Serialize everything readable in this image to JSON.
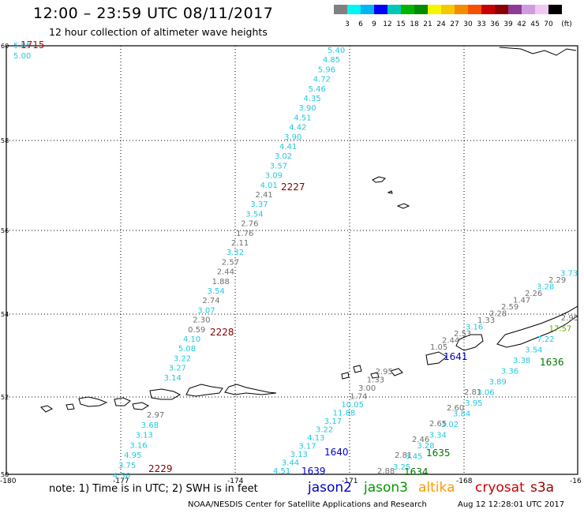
{
  "header": {
    "title": "12:00 – 23:59 UTC 08/11/2017",
    "subtitle": "12 hour collection of altimeter wave heights"
  },
  "colorbar": {
    "unit": "(ft)",
    "colors": [
      "#808080",
      "#00f5f5",
      "#00b4f5",
      "#0000f5",
      "#00c8b4",
      "#00b400",
      "#008c00",
      "#f5f500",
      "#f5c800",
      "#f58c00",
      "#f55000",
      "#c80000",
      "#8c0000",
      "#8c3c96",
      "#d29be1",
      "#f0c8f0",
      "#000000"
    ],
    "labels": [
      "3",
      "6",
      "9",
      "12",
      "15",
      "18",
      "21",
      "24",
      "27",
      "30",
      "33",
      "36",
      "39",
      "42",
      "45",
      "70"
    ]
  },
  "axes": {
    "x_ticks": [
      "-180",
      "-177",
      "-174",
      "-171",
      "-168",
      "-16"
    ],
    "y_ticks": [
      "60",
      "58",
      "56",
      "54",
      "52",
      "50"
    ]
  },
  "track_labels": [
    {
      "text": "1715",
      "color": "#cc0000"
    },
    {
      "text": "2227",
      "color": "#800000"
    },
    {
      "text": "2228",
      "color": "#800000"
    },
    {
      "text": "2229",
      "color": "#800000"
    },
    {
      "text": "1639",
      "color": "#0000cc"
    },
    {
      "text": "1640",
      "color": "#0000cc"
    },
    {
      "text": "1641",
      "color": "#0000cc"
    },
    {
      "text": "1634",
      "color": "#007700"
    },
    {
      "text": "1635",
      "color": "#007700"
    },
    {
      "text": "1636",
      "color": "#007700"
    }
  ],
  "wave_heights": {
    "corner_top": [
      "5.85",
      "5.00"
    ],
    "track_2227_north": [
      "5.40",
      "4.85",
      "5.96",
      "4.72",
      "5.46",
      "4.35",
      "3.90",
      "4.51",
      "4.42",
      "3.90",
      "4.41",
      "3.02",
      "3.57",
      "3.09",
      "4.01",
      "2.41",
      "3.37",
      "3.54",
      "2.76",
      "1.76",
      "2.11",
      "3.32",
      "2.57",
      "2.44",
      "1.88",
      "3.54",
      "2.74",
      "3.07",
      "2.30",
      "0.59",
      "4.10",
      "5.08",
      "3.22",
      "3.27",
      "3.14"
    ],
    "track_2229_south": [
      "2.97",
      "3.68",
      "3.13",
      "3.16",
      "4.95",
      "3.75",
      "4.56"
    ],
    "track_1640_ascending": [
      "4.51",
      "3.44",
      "3.13",
      "3.17",
      "4.13",
      "3.22",
      "3.17",
      "11.88",
      "10.05",
      "1.74",
      "3.00",
      "1.33",
      "2.95"
    ],
    "track_1641_east": [
      "1.05",
      "2.44",
      "2.53",
      "3.16",
      "1.33",
      "2.28",
      "2.59",
      "1.47",
      "2.26",
      "3.28",
      "2.29",
      "3.73"
    ],
    "track_1635_1636": [
      "3.25",
      "3.45",
      "3.28",
      "3.34",
      "3.02",
      "3.84",
      "3.95",
      "3.06",
      "3.89",
      "3.36",
      "3.38",
      "3.54",
      "7.22",
      "17.57",
      "2.95"
    ],
    "track_1634_grey": [
      "2.88",
      "2.81",
      "2.46",
      "2.65",
      "2.60",
      "2.81"
    ]
  },
  "legend": {
    "note": "note: 1) Time is in UTC; 2) SWH is in feet",
    "items": [
      {
        "label": "jason2",
        "color": "#0000cc"
      },
      {
        "label": "jason3",
        "color": "#009900"
      },
      {
        "label": "altika",
        "color": "#ff9900"
      },
      {
        "label": "cryosat",
        "color": "#cc0000"
      },
      {
        "label": "s3a",
        "color": "#990000"
      }
    ]
  },
  "footer": {
    "credit": "NOAA/NESDIS Center for Satellite Applications and Research",
    "timestamp": "Aug 12 12:28:01 UTC 2017"
  }
}
